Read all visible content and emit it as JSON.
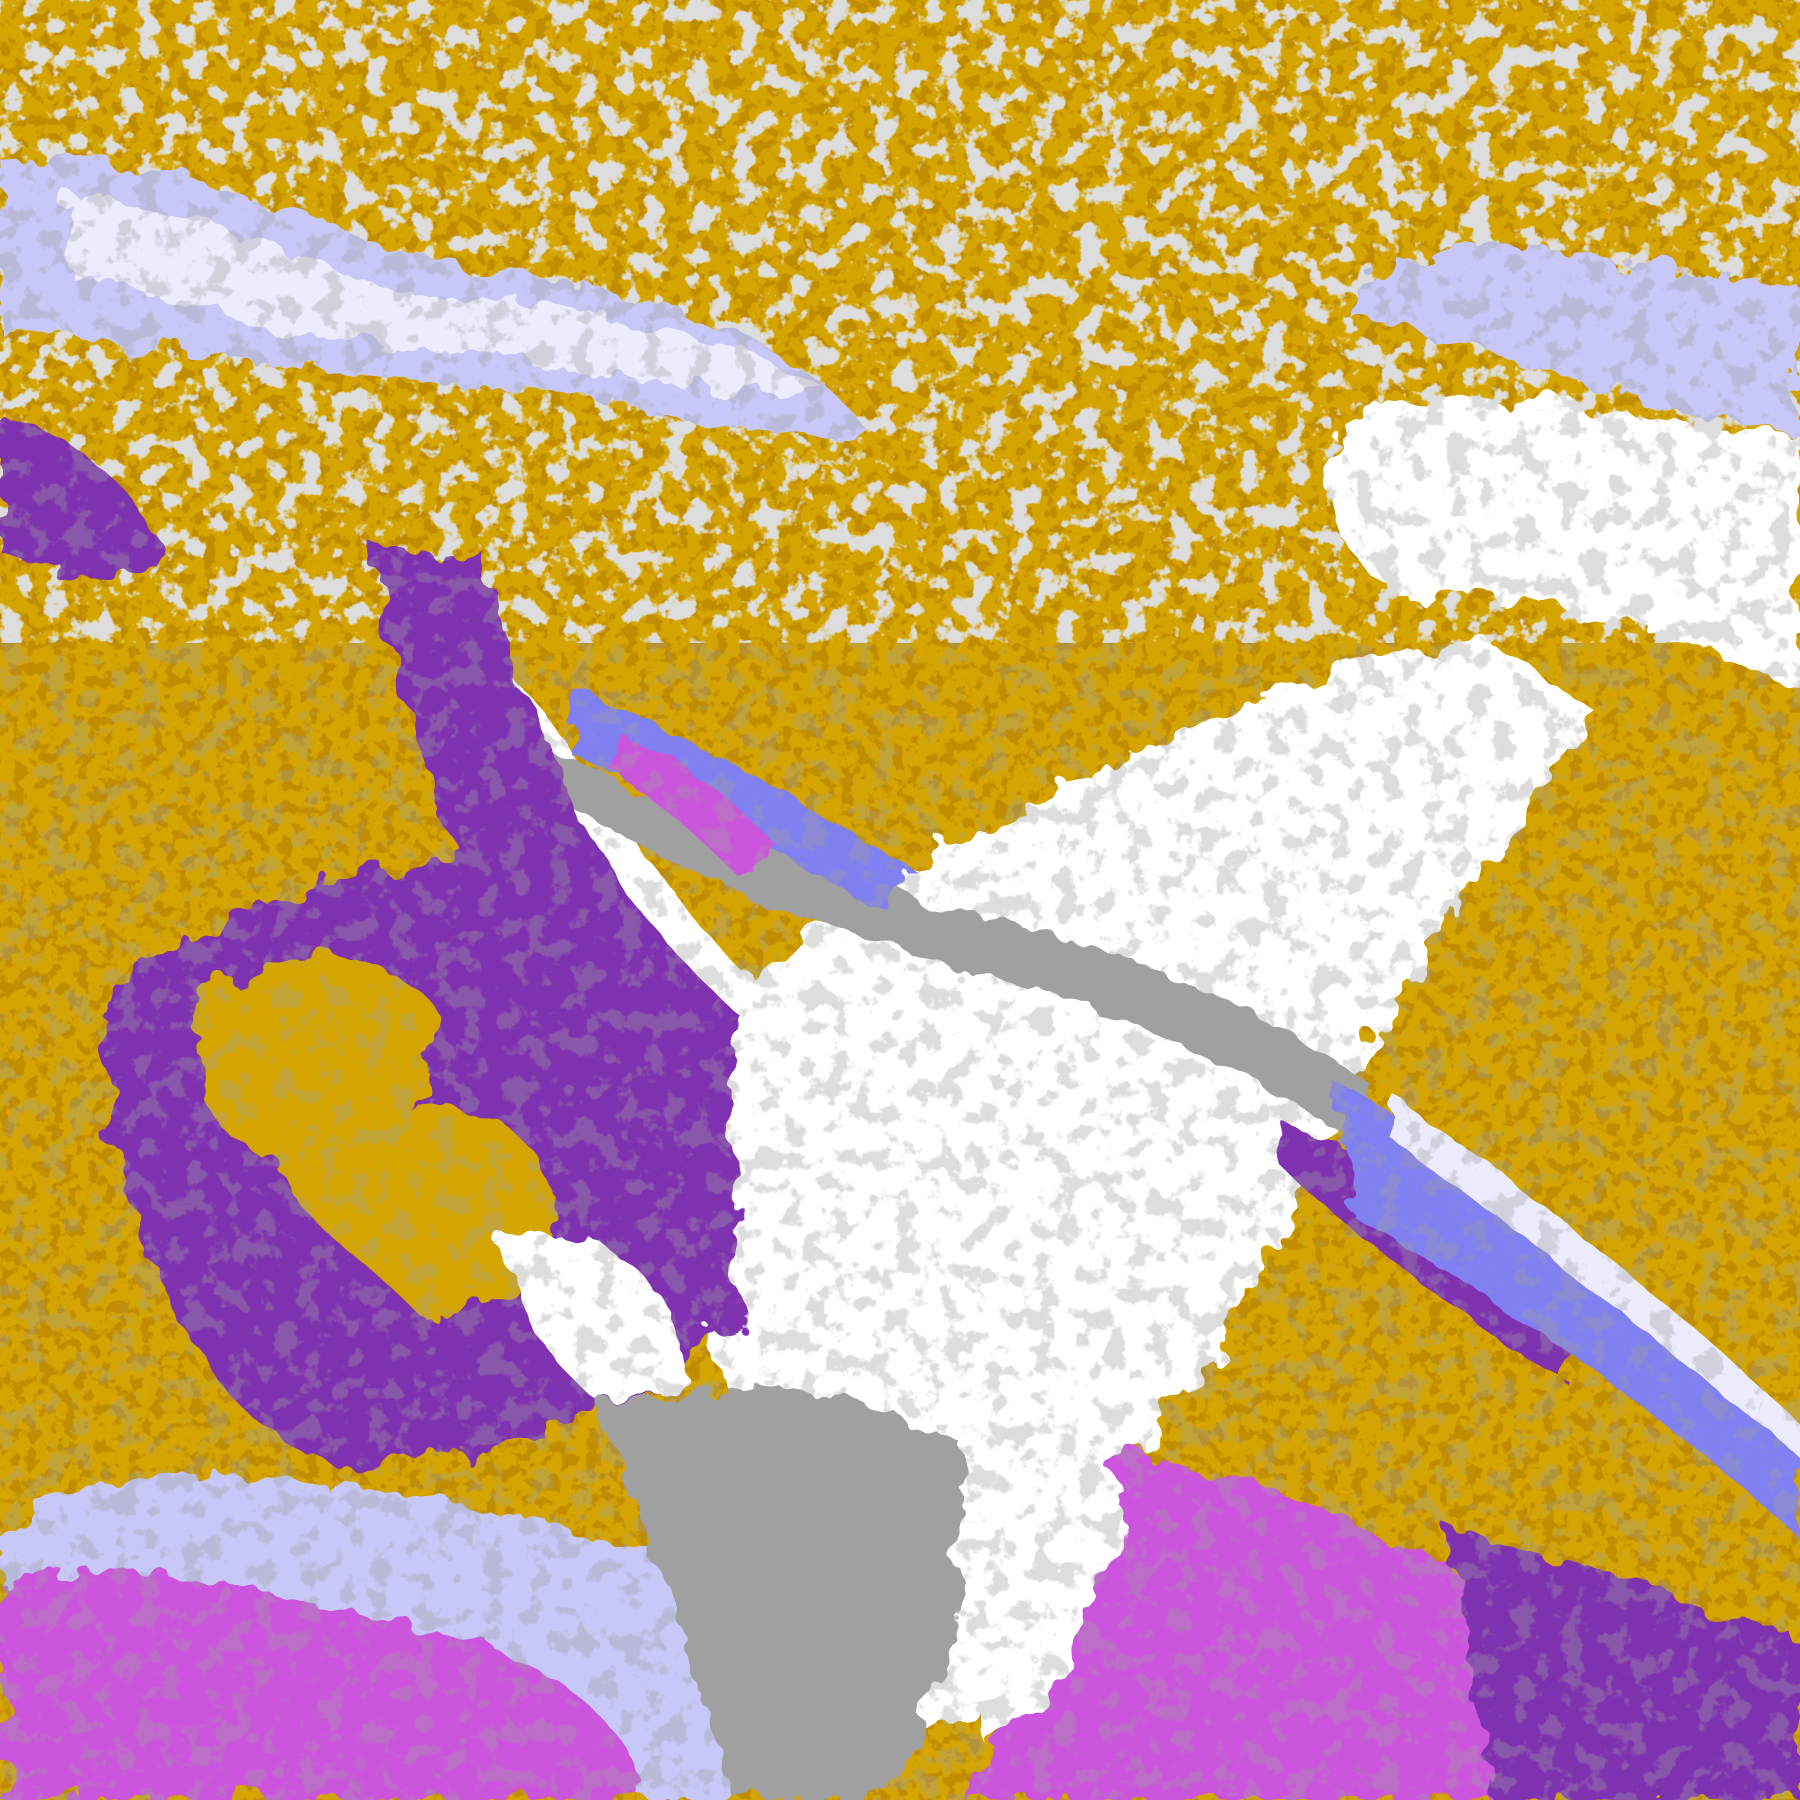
{
  "image": {
    "kind": "false-color satellite classification over South America",
    "palette": {
      "land_clear": "#ffffff",
      "low_cloud": "#d4a500",
      "dark_gold": "#c08c00",
      "stratus_ocean": "#7f33b0",
      "high_cloud_magenta": "#cc55dd",
      "mid_cloud_blue": "#8080f0",
      "thin_cloud_lavender": "#c8c8f8",
      "very_thin_cloud": "#ececff",
      "gray_terrain": "#a0a0a0"
    }
  }
}
